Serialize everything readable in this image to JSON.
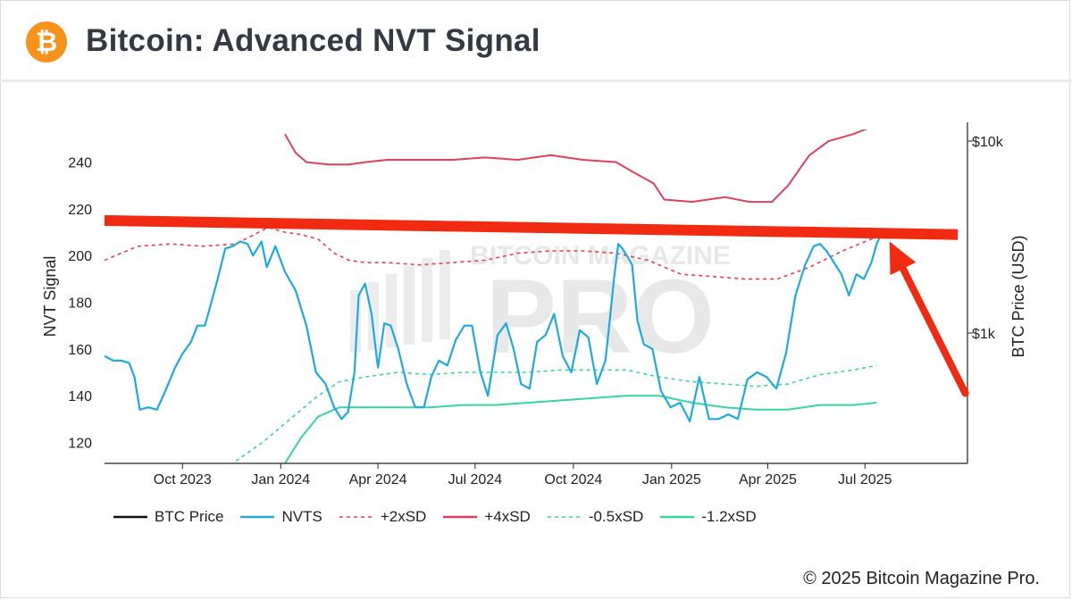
{
  "header": {
    "logo_glyph": "₿",
    "title": "Bitcoin: Advanced NVT Signal"
  },
  "footer": {
    "copyright": "© 2025 Bitcoin Magazine Pro."
  },
  "watermark": {
    "line1": "BITCOIN MAGAZINE",
    "line2": "PRO"
  },
  "colors": {
    "brand": "#f7931a",
    "nvts": "#1eaadc",
    "sd_plus2": "#e0405a",
    "sd_plus4": "#e0405a",
    "sd_minus05": "#38d4a4",
    "sd_minus12": "#38d4a4",
    "annotation": "#f02b12"
  },
  "chart_data": {
    "type": "line",
    "ylabel": "NVT Signal",
    "y2label": "BTC Price (USD)",
    "ylim": [
      111,
      254
    ],
    "yticks": [
      120,
      140,
      160,
      180,
      200,
      220,
      240
    ],
    "y2ticks": [
      "$10k",
      "$1k"
    ],
    "x_tick_labels": [
      "Oct 2023",
      "Jan 2024",
      "Apr 2024",
      "Jul 2024",
      "Oct 2024",
      "Jan 2025",
      "Apr 2025",
      "Jul 2025"
    ],
    "x_domain": [
      "2023-07-20",
      "2025-10-05"
    ],
    "x_tick_dates": [
      "2023-10-01",
      "2024-01-01",
      "2024-04-01",
      "2024-07-01",
      "2024-10-01",
      "2025-01-01",
      "2025-04-01",
      "2025-07-01"
    ],
    "legend": [
      {
        "name": "BTC Price",
        "style": "solid",
        "color": "#111111"
      },
      {
        "name": "NVTS",
        "style": "solid",
        "color": "#1eaadc"
      },
      {
        "name": "+2xSD",
        "style": "dashed",
        "color": "#e0405a"
      },
      {
        "name": "+4xSD",
        "style": "solid",
        "color": "#e0405a"
      },
      {
        "name": "-0.5xSD",
        "style": "dashed",
        "color": "#38d4a4"
      },
      {
        "name": "-1.2xSD",
        "style": "solid",
        "color": "#38d4a4"
      }
    ],
    "series": [
      {
        "name": "NVTS",
        "x": [
          "2023-07-20",
          "2023-07-28",
          "2023-08-05",
          "2023-08-12",
          "2023-08-17",
          "2023-08-22",
          "2023-08-30",
          "2023-09-07",
          "2023-09-15",
          "2023-09-24",
          "2023-10-01",
          "2023-10-09",
          "2023-10-15",
          "2023-10-22",
          "2023-10-28",
          "2023-11-03",
          "2023-11-10",
          "2023-11-17",
          "2023-11-24",
          "2023-12-01",
          "2023-12-06",
          "2023-12-10",
          "2023-12-14",
          "2023-12-19",
          "2023-12-27",
          "2024-01-05",
          "2024-01-15",
          "2024-01-25",
          "2024-02-03",
          "2024-02-12",
          "2024-02-20",
          "2024-02-27",
          "2024-03-04",
          "2024-03-10",
          "2024-03-14",
          "2024-03-20",
          "2024-03-26",
          "2024-04-01",
          "2024-04-07",
          "2024-04-13",
          "2024-04-20",
          "2024-04-28",
          "2024-05-06",
          "2024-05-14",
          "2024-05-21",
          "2024-05-28",
          "2024-06-05",
          "2024-06-13",
          "2024-06-21",
          "2024-06-28",
          "2024-07-06",
          "2024-07-13",
          "2024-07-22",
          "2024-07-30",
          "2024-08-06",
          "2024-08-13",
          "2024-08-21",
          "2024-08-28",
          "2024-09-05",
          "2024-09-13",
          "2024-09-21",
          "2024-09-29",
          "2024-10-07",
          "2024-10-15",
          "2024-10-23",
          "2024-10-31",
          "2024-11-04",
          "2024-11-08",
          "2024-11-12",
          "2024-11-16",
          "2024-11-20",
          "2024-11-25",
          "2024-11-30",
          "2024-12-06",
          "2024-12-14",
          "2024-12-22",
          "2024-12-31",
          "2025-01-09",
          "2025-01-18",
          "2025-01-27",
          "2025-02-05",
          "2025-02-14",
          "2025-02-23",
          "2025-03-04",
          "2025-03-13",
          "2025-03-22",
          "2025-03-31",
          "2025-04-09",
          "2025-04-18",
          "2025-04-27",
          "2025-05-06",
          "2025-05-14",
          "2025-05-20",
          "2025-05-26",
          "2025-06-02",
          "2025-06-09",
          "2025-06-16",
          "2025-06-23",
          "2025-06-30",
          "2025-07-07",
          "2025-07-12",
          "2025-07-16"
        ],
        "values": [
          157,
          155,
          155,
          154,
          148,
          134,
          135,
          134,
          142,
          152,
          158,
          163,
          170,
          170,
          180,
          190,
          203,
          204,
          206,
          205,
          200,
          203,
          206,
          195,
          204,
          193,
          185,
          170,
          150,
          145,
          135,
          130,
          133,
          150,
          183,
          188,
          175,
          152,
          171,
          170,
          160,
          145,
          135,
          135,
          148,
          155,
          153,
          164,
          170,
          170,
          150,
          140,
          166,
          171,
          160,
          145,
          143,
          163,
          166,
          175,
          157,
          150,
          168,
          165,
          145,
          155,
          172,
          190,
          205,
          203,
          200,
          196,
          172,
          162,
          160,
          142,
          135,
          137,
          129,
          148,
          130,
          130,
          132,
          130,
          147,
          150,
          148,
          143,
          158,
          183,
          196,
          204,
          205,
          202,
          197,
          192,
          183,
          192,
          190,
          197,
          205,
          209
        ]
      },
      {
        "name": "+2xSD",
        "x": [
          "2023-07-20",
          "2023-08-20",
          "2023-09-20",
          "2023-10-20",
          "2023-11-20",
          "2023-12-20",
          "2024-01-05",
          "2024-01-20",
          "2024-02-05",
          "2024-02-20",
          "2024-03-05",
          "2024-03-20",
          "2024-04-10",
          "2024-05-10",
          "2024-06-10",
          "2024-07-10",
          "2024-08-10",
          "2024-09-10",
          "2024-10-10",
          "2024-11-10",
          "2024-12-10",
          "2025-01-10",
          "2025-02-10",
          "2025-03-10",
          "2025-04-10",
          "2025-05-10",
          "2025-06-10",
          "2025-07-12"
        ],
        "values": [
          198,
          204,
          205,
          204,
          205,
          212,
          210,
          209,
          207,
          201,
          198,
          197,
          197,
          196,
          197,
          198,
          201,
          202,
          202,
          201,
          198,
          192,
          191,
          190,
          190,
          195,
          202,
          208
        ]
      },
      {
        "name": "+4xSD",
        "x": [
          "2024-01-05",
          "2024-01-15",
          "2024-01-25",
          "2024-02-15",
          "2024-03-05",
          "2024-03-20",
          "2024-04-10",
          "2024-05-10",
          "2024-06-10",
          "2024-07-10",
          "2024-08-10",
          "2024-09-10",
          "2024-10-10",
          "2024-11-10",
          "2024-11-25",
          "2024-12-15",
          "2024-12-25",
          "2025-01-20",
          "2025-02-20",
          "2025-03-15",
          "2025-04-05",
          "2025-04-20",
          "2025-05-10",
          "2025-05-28",
          "2025-06-20",
          "2025-07-12"
        ],
        "values": [
          252,
          244,
          240,
          239,
          239,
          240,
          241,
          241,
          241,
          242,
          241,
          243,
          241,
          240,
          236,
          231,
          224,
          223,
          225,
          223,
          223,
          230,
          243,
          249,
          252,
          256
        ]
      },
      {
        "name": "-0.5xSD",
        "x": [
          "2023-11-20",
          "2023-12-15",
          "2024-01-10",
          "2024-02-05",
          "2024-02-25",
          "2024-03-20",
          "2024-04-20",
          "2024-05-20",
          "2024-06-20",
          "2024-07-20",
          "2024-08-20",
          "2024-09-20",
          "2024-10-20",
          "2024-11-20",
          "2024-12-20",
          "2025-01-20",
          "2025-02-20",
          "2025-03-20",
          "2025-04-20",
          "2025-05-20",
          "2025-06-20",
          "2025-07-12"
        ],
        "values": [
          112,
          120,
          130,
          140,
          146,
          148,
          150,
          149,
          150,
          150,
          150,
          151,
          151,
          151,
          148,
          146,
          145,
          144,
          145,
          149,
          151,
          153
        ]
      },
      {
        "name": "-1.2xSD",
        "x": [
          "2024-01-05",
          "2024-01-20",
          "2024-02-05",
          "2024-02-25",
          "2024-03-20",
          "2024-04-20",
          "2024-05-20",
          "2024-06-20",
          "2024-07-20",
          "2024-08-20",
          "2024-09-20",
          "2024-10-20",
          "2024-11-20",
          "2024-12-20",
          "2025-01-20",
          "2025-02-20",
          "2025-03-20",
          "2025-04-20",
          "2025-05-20",
          "2025-06-20",
          "2025-07-12"
        ],
        "values": [
          111,
          122,
          131,
          135,
          135,
          135,
          135,
          136,
          136,
          137,
          138,
          139,
          140,
          140,
          137,
          135,
          134,
          134,
          136,
          136,
          137
        ]
      }
    ]
  },
  "annotations": {
    "resistance_line": {
      "from": {
        "x": "2023-07-20",
        "y": 215
      },
      "to": {
        "x": "2025-09-26",
        "y": 209
      }
    },
    "arrow": {
      "tip": {
        "x": "2025-07-24",
        "y": 206
      },
      "tail_x": "2025-10-03",
      "tail_y": 141
    }
  }
}
